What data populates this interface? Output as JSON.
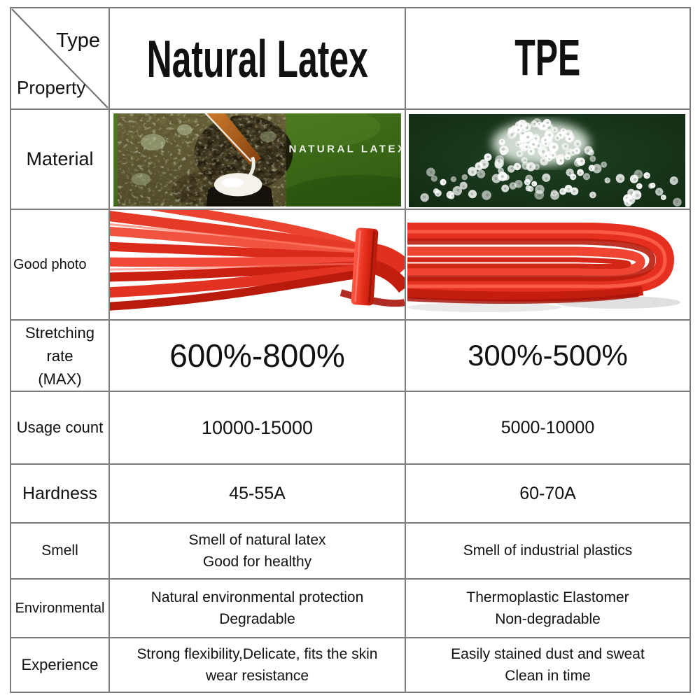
{
  "table": {
    "corner": {
      "type": "Type",
      "property": "Property"
    },
    "col_headers": {
      "latex": "Natural Latex",
      "tpe": "TPE"
    },
    "rows": {
      "material": {
        "label": "Material",
        "latex_overlay_text": "NATURAL LATEX"
      },
      "good_photo": {
        "label": "Good photo"
      },
      "stretching": {
        "label_line1": "Stretching rate",
        "label_line2": "(MAX)",
        "latex": "600%-800%",
        "tpe": "300%-500%"
      },
      "usage": {
        "label": "Usage count",
        "latex": "10000-15000",
        "tpe": "5000-10000"
      },
      "hardness": {
        "label": "Hardness",
        "latex": "45-55A",
        "tpe": "60-70A"
      },
      "smell": {
        "label": "Smell",
        "latex_line1": "Smell of natural latex",
        "latex_line2": "Good for healthy",
        "tpe": "Smell of industrial plastics"
      },
      "environmental": {
        "label": "Environmental",
        "latex_line1": "Natural environmental protection",
        "latex_line2": "Degradable",
        "tpe_line1": "Thermoplastic Elastomer",
        "tpe_line2": "Non-degradable"
      },
      "experience": {
        "label": "Experience",
        "latex_line1": "Strong flexibility,Delicate, fits the skin",
        "latex_line2": "wear resistance",
        "tpe_line1": "Easily stained dust and sweat",
        "tpe_line2": "Clean in time"
      }
    },
    "images": {
      "latex_material": "natural-latex-tree-tapping-photo",
      "tpe_material": "tpe-white-pellets-photo",
      "latex_band": "red-latex-resistance-band-photo",
      "tpe_band": "red-tpe-resistance-band-photo"
    },
    "colors": {
      "border_gray": "#7c7c7c",
      "band_red": "#e5301f",
      "latex_leaf_green": "#3f6d1a",
      "tpe_dark_green": "#16351a"
    }
  }
}
